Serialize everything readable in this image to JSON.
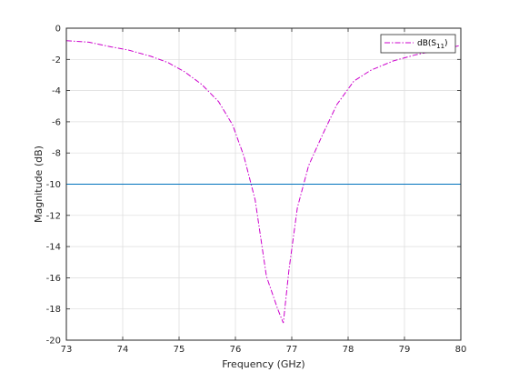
{
  "chart_data": {
    "type": "line",
    "xlabel": "Frequency (GHz)",
    "ylabel": "Magnitude (dB)",
    "xlim": [
      73,
      80
    ],
    "ylim": [
      -20,
      0
    ],
    "x_ticks": [
      73,
      74,
      75,
      76,
      77,
      78,
      79,
      80
    ],
    "y_ticks": [
      0,
      -2,
      -4,
      -6,
      -8,
      -10,
      -12,
      -14,
      -16,
      -18,
      -20
    ],
    "grid": true,
    "legend_position": "top-right",
    "series": [
      {
        "name": "dB(S11)",
        "name_main": "dB(S",
        "name_sub": "11",
        "name_close": ")",
        "color": "#cc00cc",
        "style": "dash-dot",
        "x": [
          73.0,
          73.4,
          73.8,
          74.1,
          74.5,
          74.8,
          75.1,
          75.4,
          75.7,
          75.95,
          76.15,
          76.35,
          76.55,
          76.75,
          76.85,
          76.95,
          77.1,
          77.3,
          77.55,
          77.8,
          78.1,
          78.4,
          78.8,
          79.2,
          79.6,
          80.0
        ],
        "y": [
          -0.8,
          -0.9,
          -1.2,
          -1.4,
          -1.8,
          -2.2,
          -2.8,
          -3.6,
          -4.7,
          -6.2,
          -8.2,
          -11.0,
          -15.9,
          -18.0,
          -18.9,
          -15.5,
          -11.5,
          -8.8,
          -6.8,
          -4.9,
          -3.4,
          -2.7,
          -2.1,
          -1.7,
          -1.4,
          -1.1
        ]
      },
      {
        "name": "",
        "color": "#0072bd",
        "style": "solid",
        "x": [
          73,
          80
        ],
        "y": [
          -10,
          -10
        ]
      }
    ]
  }
}
